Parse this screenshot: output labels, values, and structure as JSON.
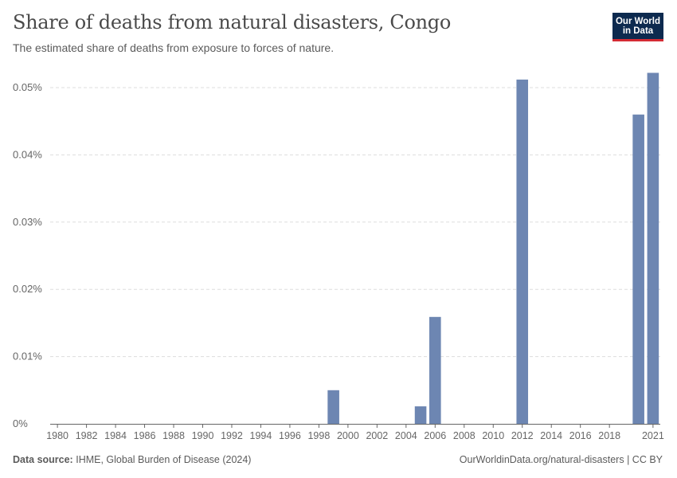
{
  "header": {
    "title": "Share of deaths from natural disasters, Congo",
    "subtitle": "The estimated share of deaths from exposure to forces of nature.",
    "logo_line1": "Our World",
    "logo_line2": "in Data"
  },
  "footer": {
    "source_label": "Data source:",
    "source_text": "IHME, Global Burden of Disease (2024)",
    "credit": "OurWorldinData.org/natural-disasters | CC BY"
  },
  "colors": {
    "bar": "#6d86b2",
    "grid": "#dddddd",
    "axis": "#666666",
    "logo_bg": "#0d2a4f",
    "logo_accent": "#d42b34"
  },
  "chart_data": {
    "type": "bar",
    "title": "Share of deaths from natural disasters, Congo",
    "xlabel": "",
    "ylabel": "",
    "unit": "%",
    "ylim": [
      0,
      0.05
    ],
    "yticks": [
      0,
      0.01,
      0.02,
      0.03,
      0.04,
      0.05
    ],
    "ytick_labels": [
      "0%",
      "0.01%",
      "0.02%",
      "0.03%",
      "0.04%",
      "0.05%"
    ],
    "xlim": [
      1980,
      2021
    ],
    "xticks": [
      1980,
      1982,
      1984,
      1986,
      1988,
      1990,
      1992,
      1994,
      1996,
      1998,
      2000,
      2002,
      2004,
      2006,
      2008,
      2010,
      2012,
      2014,
      2016,
      2018,
      2021
    ],
    "xtick_labels": [
      "1980",
      "1982",
      "1984",
      "1986",
      "1988",
      "1990",
      "1992",
      "1994",
      "1996",
      "1998",
      "2000",
      "2002",
      "2004",
      "2006",
      "2008",
      "2010",
      "2012",
      "2014",
      "2016",
      "2018",
      "2021"
    ],
    "grid": true,
    "categories": [
      1980,
      1981,
      1982,
      1983,
      1984,
      1985,
      1986,
      1987,
      1988,
      1989,
      1990,
      1991,
      1992,
      1993,
      1994,
      1995,
      1996,
      1997,
      1998,
      1999,
      2000,
      2001,
      2002,
      2003,
      2004,
      2005,
      2006,
      2007,
      2008,
      2009,
      2010,
      2011,
      2012,
      2013,
      2014,
      2015,
      2016,
      2017,
      2018,
      2019,
      2020,
      2021
    ],
    "values": [
      0,
      0,
      0,
      0,
      0,
      0,
      0,
      0,
      0,
      0,
      0,
      0,
      0,
      0,
      0,
      0,
      0,
      0,
      0,
      0.005,
      0,
      0,
      0,
      0,
      0,
      0.0026,
      0.0159,
      0,
      0,
      0,
      0,
      0,
      0.0512,
      0,
      0,
      0,
      0,
      0,
      0,
      0,
      0.046,
      0.0522
    ]
  }
}
